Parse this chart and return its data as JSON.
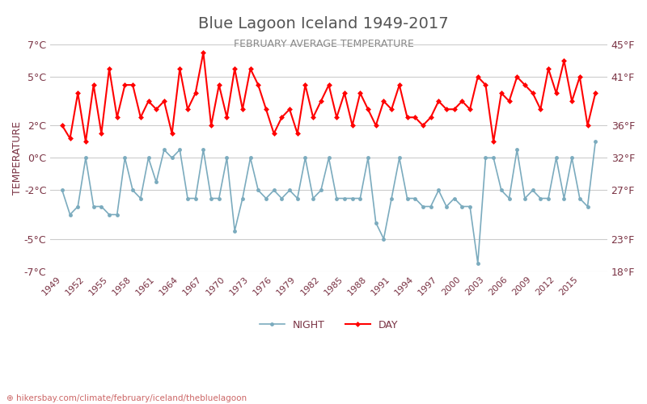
{
  "title": "Blue Lagoon Iceland 1949-2017",
  "subtitle": "FEBRUARY AVERAGE TEMPERATURE",
  "ylabel": "TEMPERATURE",
  "footer": "hikersbay.com/climate/february/iceland/thebluelagoon",
  "years": [
    1949,
    1950,
    1951,
    1952,
    1953,
    1954,
    1955,
    1956,
    1957,
    1958,
    1959,
    1960,
    1961,
    1962,
    1963,
    1964,
    1965,
    1966,
    1967,
    1968,
    1969,
    1970,
    1971,
    1972,
    1973,
    1974,
    1975,
    1976,
    1977,
    1978,
    1979,
    1980,
    1981,
    1982,
    1983,
    1984,
    1985,
    1986,
    1987,
    1988,
    1989,
    1990,
    1991,
    1992,
    1993,
    1994,
    1995,
    1996,
    1997,
    1998,
    1999,
    2000,
    2001,
    2002,
    2003,
    2004,
    2005,
    2006,
    2007,
    2008,
    2009,
    2010,
    2011,
    2012,
    2013,
    2014,
    2015,
    2016,
    2017
  ],
  "day": [
    2.0,
    1.2,
    4.0,
    1.0,
    4.5,
    1.5,
    5.5,
    2.5,
    4.5,
    4.5,
    2.5,
    3.5,
    3.0,
    3.5,
    1.5,
    5.5,
    3.0,
    4.0,
    6.5,
    2.0,
    4.5,
    2.5,
    5.5,
    3.0,
    5.5,
    4.5,
    3.0,
    1.5,
    2.5,
    3.0,
    1.5,
    4.5,
    2.5,
    3.5,
    4.5,
    2.5,
    4.0,
    2.0,
    4.0,
    3.0,
    2.0,
    3.5,
    3.0,
    4.5,
    2.5,
    2.5,
    2.0,
    2.5,
    3.5,
    3.0,
    3.0,
    3.5,
    3.0,
    5.0,
    4.5,
    1.0,
    4.0,
    3.5,
    5.0,
    4.5,
    4.0,
    3.0,
    5.5,
    4.0,
    6.0,
    3.5,
    5.0,
    2.0,
    4.0
  ],
  "night": [
    -2.0,
    -3.5,
    -3.0,
    0.0,
    -3.0,
    -3.0,
    -3.5,
    -3.5,
    0.0,
    -2.0,
    -2.5,
    0.0,
    -1.5,
    0.5,
    0.0,
    0.5,
    -2.5,
    -2.5,
    0.5,
    -2.5,
    -2.5,
    0.0,
    -4.5,
    -2.5,
    0.0,
    -2.0,
    -2.5,
    -2.0,
    -2.5,
    -2.0,
    -2.5,
    0.0,
    -2.5,
    -2.0,
    0.0,
    -2.5,
    -2.5,
    -2.5,
    -2.5,
    0.0,
    -4.0,
    -5.0,
    -2.5,
    0.0,
    -2.5,
    -2.5,
    -3.0,
    -3.0,
    -2.0,
    -3.0,
    -2.5,
    -3.0,
    -3.0,
    -6.5,
    0.0,
    0.0,
    -2.0,
    -2.5,
    0.5,
    -2.5,
    -2.0,
    -2.5,
    -2.5,
    0.0,
    -2.5,
    0.0,
    -2.5,
    -3.0,
    1.0
  ],
  "ylim": [
    -7,
    7
  ],
  "yticks_c": [
    -7,
    -5,
    -2,
    0,
    2,
    5,
    7
  ],
  "yticks_f": [
    18,
    23,
    27,
    32,
    36,
    41,
    45
  ],
  "xtick_years": [
    1949,
    1952,
    1955,
    1958,
    1961,
    1964,
    1967,
    1970,
    1973,
    1976,
    1979,
    1982,
    1985,
    1988,
    1991,
    1994,
    1997,
    2000,
    2003,
    2006,
    2009,
    2012,
    2015
  ],
  "day_color": "#ff0000",
  "night_color": "#7babbe",
  "title_color": "#555555",
  "subtitle_color": "#888888",
  "label_color": "#7a3344",
  "grid_color": "#cccccc",
  "bg_color": "#ffffff",
  "footer_color": "#cc6666",
  "legend_night": "NIGHT",
  "legend_day": "DAY"
}
